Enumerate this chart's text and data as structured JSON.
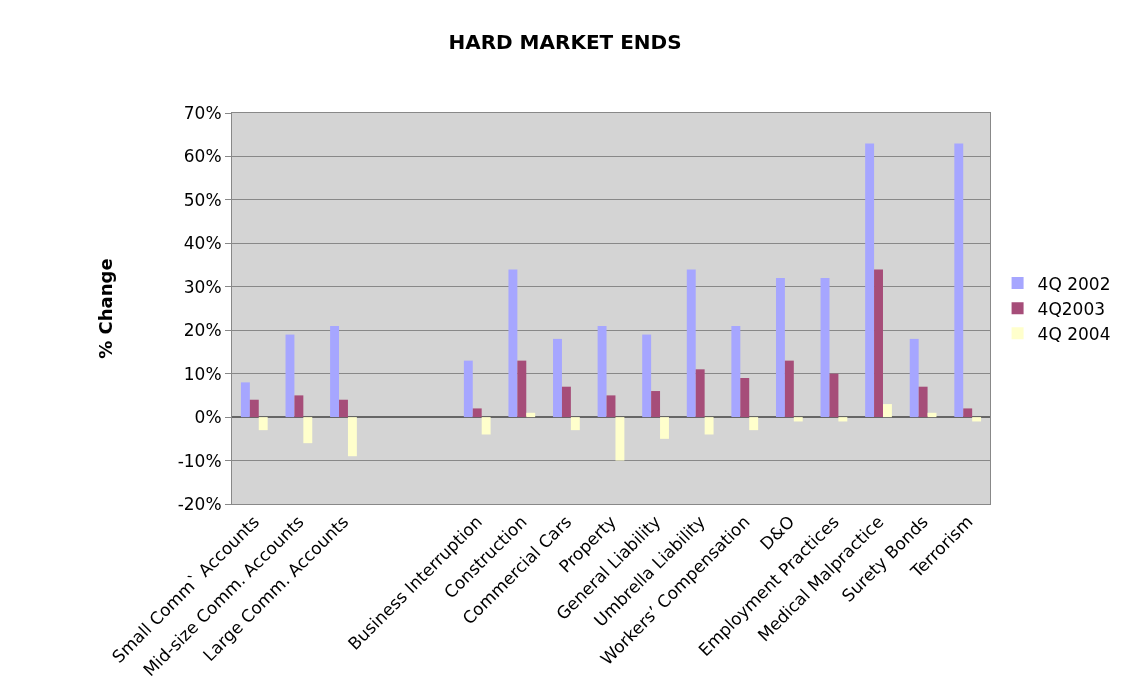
{
  "chart_data": {
    "type": "bar",
    "title": "HARD MARKET ENDS",
    "ylabel": "% Change",
    "categories": [
      "Small Comm` Accounts",
      "Mid-size Comm. Accounts",
      "Large Comm. Accounts",
      null,
      null,
      "Business Interruption",
      "Construction",
      "Commercial Cars",
      "Property",
      "General Liability",
      "Umbrella Liability",
      "Workers’ Compensation",
      "D&O",
      "Employment Practices",
      "Medical Malpractice",
      "Surety Bonds",
      "Terrorism"
    ],
    "series": [
      {
        "name": "4Q 2002",
        "color": "#a6a6ff",
        "values": [
          8,
          19,
          21,
          null,
          null,
          13,
          34,
          18,
          21,
          19,
          34,
          21,
          32,
          32,
          63,
          18,
          63
        ]
      },
      {
        "name": "4Q2003",
        "color": "#a64d79",
        "values": [
          4,
          5,
          4,
          null,
          null,
          2,
          13,
          7,
          5,
          6,
          11,
          9,
          13,
          10,
          34,
          7,
          2
        ]
      },
      {
        "name": "4Q 2004",
        "color": "#ffffcc",
        "values": [
          -3,
          -6,
          -9,
          null,
          null,
          -4,
          1,
          -3,
          -10,
          -5,
          -4,
          -3,
          -1,
          -1,
          3,
          1,
          -1
        ]
      }
    ],
    "ylim": [
      -20,
      70
    ],
    "yticks": [
      {
        "value": -20,
        "label": "-20%"
      },
      {
        "value": -10,
        "label": "-10%"
      },
      {
        "value": 0,
        "label": "0%"
      },
      {
        "value": 10,
        "label": "10%"
      },
      {
        "value": 20,
        "label": "20%"
      },
      {
        "value": 30,
        "label": "30%"
      },
      {
        "value": 40,
        "label": "40%"
      },
      {
        "value": 50,
        "label": "50%"
      },
      {
        "value": 60,
        "label": "60%"
      },
      {
        "value": 70,
        "label": "70%"
      }
    ],
    "grid": "y",
    "legend": "right"
  }
}
